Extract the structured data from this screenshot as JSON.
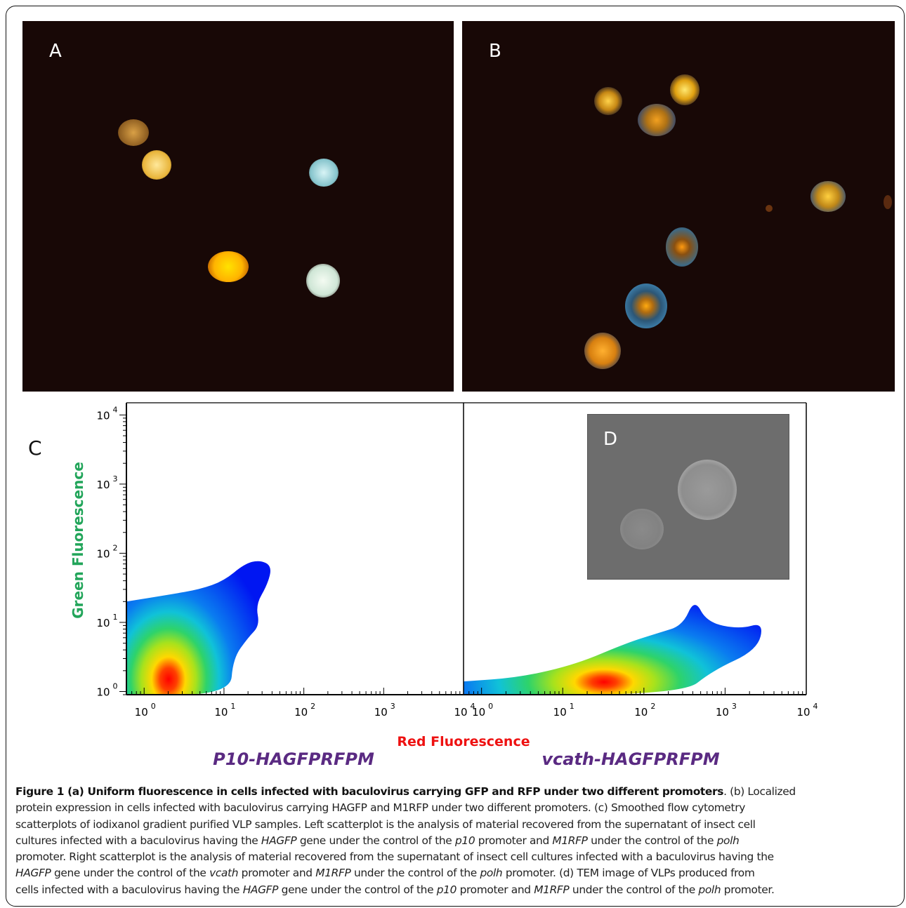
{
  "panels": {
    "a_label": "A",
    "b_label": "B",
    "c_label": "C",
    "d_label": "D"
  },
  "colors": {
    "micrograph_background": "#180806",
    "orange_cell": "#ffb400",
    "cyan_cell": "#a8dce0",
    "green_fluorescence_label": "#22a55a",
    "red_fluorescence_label": "#ee1111",
    "construct_label": "#5a2a82",
    "tem_background": "#6d6d6d"
  },
  "chart_data": [
    {
      "type": "heatmap",
      "description_label": "P10-HAGFPRFPM",
      "xlabel": "Red Fluorescence",
      "ylabel": "Green Fluorescence",
      "xscale": "log",
      "yscale": "log",
      "xlim": [
        0.6,
        10000
      ],
      "ylim": [
        0.9,
        15000
      ],
      "x_ticks": [
        "10^0",
        "10^1",
        "10^2",
        "10^3",
        "10^4"
      ],
      "y_ticks": [
        "10^0",
        "10^1",
        "10^2",
        "10^3",
        "10^4"
      ],
      "density_peak": {
        "x": 2,
        "y": 1.5
      },
      "outline": [
        [
          0.6,
          0.9
        ],
        [
          12,
          0.9
        ],
        [
          13,
          3
        ],
        [
          20,
          6
        ],
        [
          28,
          9
        ],
        [
          25,
          18
        ],
        [
          35,
          35
        ],
        [
          40,
          65
        ],
        [
          28,
          80
        ],
        [
          18,
          70
        ],
        [
          10,
          40
        ],
        [
          5,
          30
        ],
        [
          2,
          25
        ],
        [
          0.6,
          20
        ]
      ]
    },
    {
      "type": "heatmap",
      "description_label": "vcath-HAGFPRFPM",
      "xlabel": "Red Fluorescence",
      "ylabel": "Green Fluorescence",
      "xscale": "log",
      "yscale": "log",
      "xlim": [
        0.6,
        10000
      ],
      "ylim": [
        0.9,
        15000
      ],
      "x_ticks": [
        "10^0",
        "10^1",
        "10^2",
        "10^3",
        "10^4"
      ],
      "y_ticks": [
        "10^0",
        "10^1",
        "10^2",
        "10^3",
        "10^4"
      ],
      "density_peak": {
        "x": 45,
        "y": 1.5
      },
      "outline": [
        [
          0.6,
          0.9
        ],
        [
          300,
          0.9
        ],
        [
          700,
          2
        ],
        [
          2500,
          4
        ],
        [
          3000,
          10
        ],
        [
          1500,
          8
        ],
        [
          600,
          10
        ],
        [
          420,
          22
        ],
        [
          300,
          9
        ],
        [
          150,
          7
        ],
        [
          60,
          5
        ],
        [
          15,
          2.5
        ],
        [
          3,
          1.6
        ],
        [
          0.6,
          1.4
        ]
      ]
    }
  ],
  "axes": {
    "xlabel": "Red Fluorescence",
    "ylabel": "Green Fluorescence",
    "left_construct": "P10-HAGFPRFPM",
    "right_construct": "vcath-HAGFPRFPM",
    "tick_base": "10",
    "tick_exps": [
      "0",
      "1",
      "2",
      "3",
      "4"
    ]
  },
  "caption": {
    "line1_bold": "Figure 1 (a) Uniform fluorescence in cells infected with baculovirus carrying GFP and RFP under two different promoters",
    "line1_rest": ". (b) Localized",
    "line2": "protein expression in cells infected with baculovirus carrying HAGFP and M1RFP under two different promoters. (c) Smoothed flow cytometry",
    "line3": "scatterplots of iodixanol gradient purified VLP samples. Left scatterplot is the analysis of material recovered from the supernatant of insect cell",
    "line4_a": "cultures infected with a baculovirus having the ",
    "line4_i1": "HAGFP",
    "line4_b": " gene under the control of the ",
    "line4_i2": "p10",
    "line4_c": " promoter and ",
    "line4_i3": "M1RFP",
    "line4_d": " under the control of the ",
    "line4_i4": "polh",
    "line5_a": "promoter. Right scatterplot is the analysis of material recovered from the supernatant of insect cell cultures infected with a baculovirus having the",
    "line6_i1": "HAGFP",
    "line6_a": " gene under the control of the ",
    "line6_i2": "vcath",
    "line6_b": " promoter and ",
    "line6_i3": "M1RFP",
    "line6_c": " under the control of the ",
    "line6_i4": "polh",
    "line6_d": " promoter. (d) TEM image of VLPs produced from",
    "line7_a": "cells infected with a baculovirus having the ",
    "line7_i1": "HAGFP",
    "line7_b": " gene under the control of the ",
    "line7_i2": "p10",
    "line7_c": " promoter and ",
    "line7_i3": "M1RFP",
    "line7_d": " under the control of the ",
    "line7_i4": "polh",
    "line7_e": " promoter."
  }
}
